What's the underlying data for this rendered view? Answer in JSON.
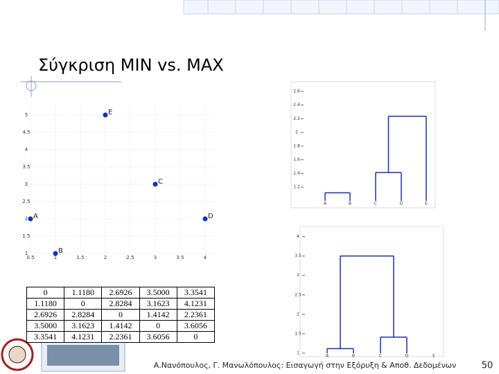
{
  "slide": {
    "title": "Σύγκριση MIN vs. MAX",
    "footer": "Α.Νανόπουλος, Γ. Μανωλόπουλος: Εισαγωγή στην Εξόρυξη & Αποθ. Δεδομένων",
    "page_number": "50"
  },
  "scatter": {
    "type": "scatter",
    "color": "#1030c0",
    "grid": true,
    "points": [
      {
        "label": "E",
        "x": 2,
        "y": 5
      },
      {
        "label": "C",
        "x": 3,
        "y": 3
      },
      {
        "label": "A",
        "x": 0.5,
        "y": 2
      },
      {
        "label": "D",
        "x": 4,
        "y": 2
      },
      {
        "label": "B",
        "x": 1,
        "y": 1
      }
    ],
    "xlim": [
      0.5,
      4
    ],
    "ylim": [
      1,
      5
    ],
    "xticks": [
      0.5,
      1,
      1.5,
      2,
      2.5,
      3,
      3.5,
      4
    ],
    "yticks": [
      5,
      4.5,
      4,
      3.5,
      3,
      2.5,
      2,
      1.5,
      1
    ]
  },
  "distance_table": {
    "rows": [
      [
        "0",
        "1.1180",
        "2.6926",
        "3.5000",
        "3.3541"
      ],
      [
        "1.1180",
        "0",
        "2.8284",
        "3.1623",
        "4.1231"
      ],
      [
        "2.6926",
        "2.8284",
        "0",
        "1.4142",
        "2.2361"
      ],
      [
        "3.5000",
        "3.1623",
        "1.4142",
        "0",
        "3.6056"
      ],
      [
        "3.3541",
        "4.1231",
        "2.2361",
        "3.6056",
        "0"
      ]
    ]
  },
  "dendrograms": [
    {
      "type": "dendrogram",
      "color": "#1a2fb0",
      "leaves": [
        "A",
        "B",
        "C",
        "D",
        "E"
      ],
      "ylim": [
        1,
        2.7
      ],
      "yticks": [
        2.6,
        2.4,
        2.2,
        2,
        1.8,
        1.6,
        1.4,
        1.2
      ],
      "merges": [
        {
          "leaves": [
            0,
            1
          ],
          "height": 1.118
        },
        {
          "leaves": [
            2,
            3
          ],
          "height": 1.414
        },
        {
          "leaves": [
            2,
            3,
            4
          ],
          "height": 2.236
        }
      ]
    },
    {
      "type": "dendrogram",
      "color": "#1a2fb0",
      "leaves": [
        "A",
        "B",
        "C",
        "D",
        "E"
      ],
      "ylim": [
        1,
        4.1
      ],
      "yticks": [
        4,
        3.5,
        3,
        2.5,
        2,
        1.5,
        1
      ],
      "merges": [
        {
          "leaves": [
            0,
            1
          ],
          "height": 1.118
        },
        {
          "leaves": [
            2,
            3
          ],
          "height": 1.414
        },
        {
          "leaves": [
            0,
            1,
            2,
            3
          ],
          "height": 3.5
        }
      ]
    }
  ]
}
